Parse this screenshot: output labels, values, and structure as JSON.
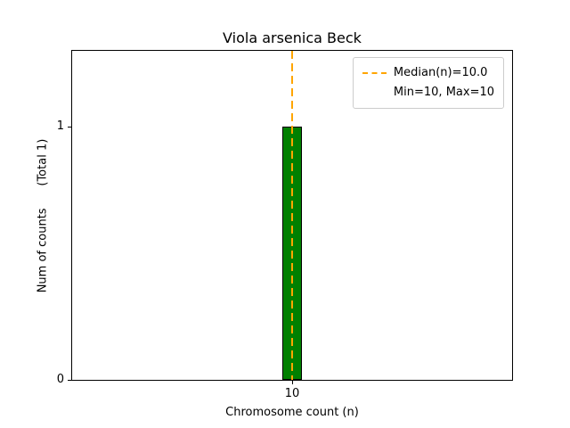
{
  "chart_data": {
    "type": "bar",
    "title": "Viola arsenica Beck",
    "xlabel": "Chromosome count (n)",
    "ylabel": "Num of counts      (Total 1)",
    "categories": [
      10
    ],
    "values": [
      1
    ],
    "xlim": [
      9,
      11
    ],
    "ylim": [
      0,
      1.3
    ],
    "xticks": [
      {
        "value": 10,
        "label": "10"
      }
    ],
    "yticks": [
      {
        "value": 0,
        "label": "0"
      },
      {
        "value": 1,
        "label": "1"
      }
    ],
    "bar_color": "#008000",
    "bar_edge_color": "#000000",
    "bar_width": 0.09,
    "median": 10.0,
    "median_color": "#ffa500",
    "grid": false,
    "legend": {
      "position": "upper-right",
      "items": [
        {
          "sample": "dashed-line",
          "label": "Median(n)=10.0"
        },
        {
          "sample": "none",
          "label": "Min=10, Max=10"
        }
      ]
    }
  }
}
